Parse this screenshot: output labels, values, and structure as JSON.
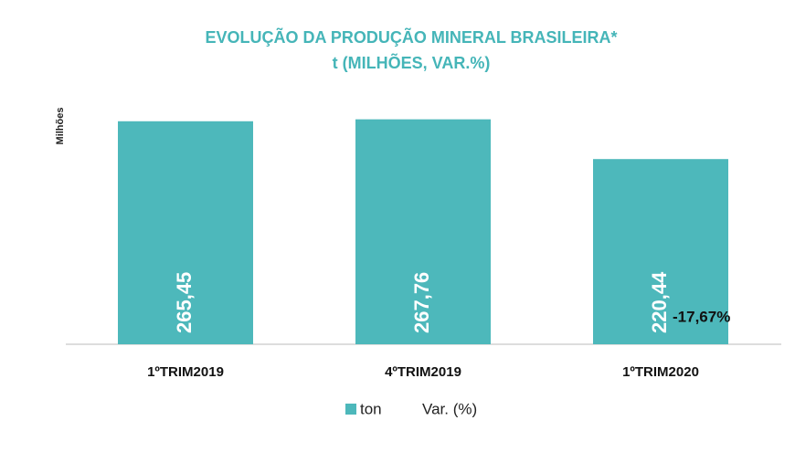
{
  "chart_data": {
    "type": "bar",
    "title": "EVOLUÇÃO DA PRODUÇÃO MINERAL BRASILEIRA*",
    "subtitle": "t (MILHÕES, VAR.%)",
    "y_label": "Milhões",
    "categories": [
      "1ºTRIM2019",
      "4ºTRIM2019",
      "1ºTRIM2020"
    ],
    "series": [
      {
        "name": "ton",
        "color": "#4db8bb",
        "values": [
          265.45,
          267.76,
          220.44
        ],
        "value_labels": [
          "265,45",
          "267,76",
          "220,44"
        ]
      },
      {
        "name": "Var. (%)",
        "values": [
          null,
          null,
          -17.67
        ],
        "value_labels": [
          null,
          null,
          "-17,67%"
        ]
      }
    ],
    "ylim": [
      0,
      300
    ]
  }
}
